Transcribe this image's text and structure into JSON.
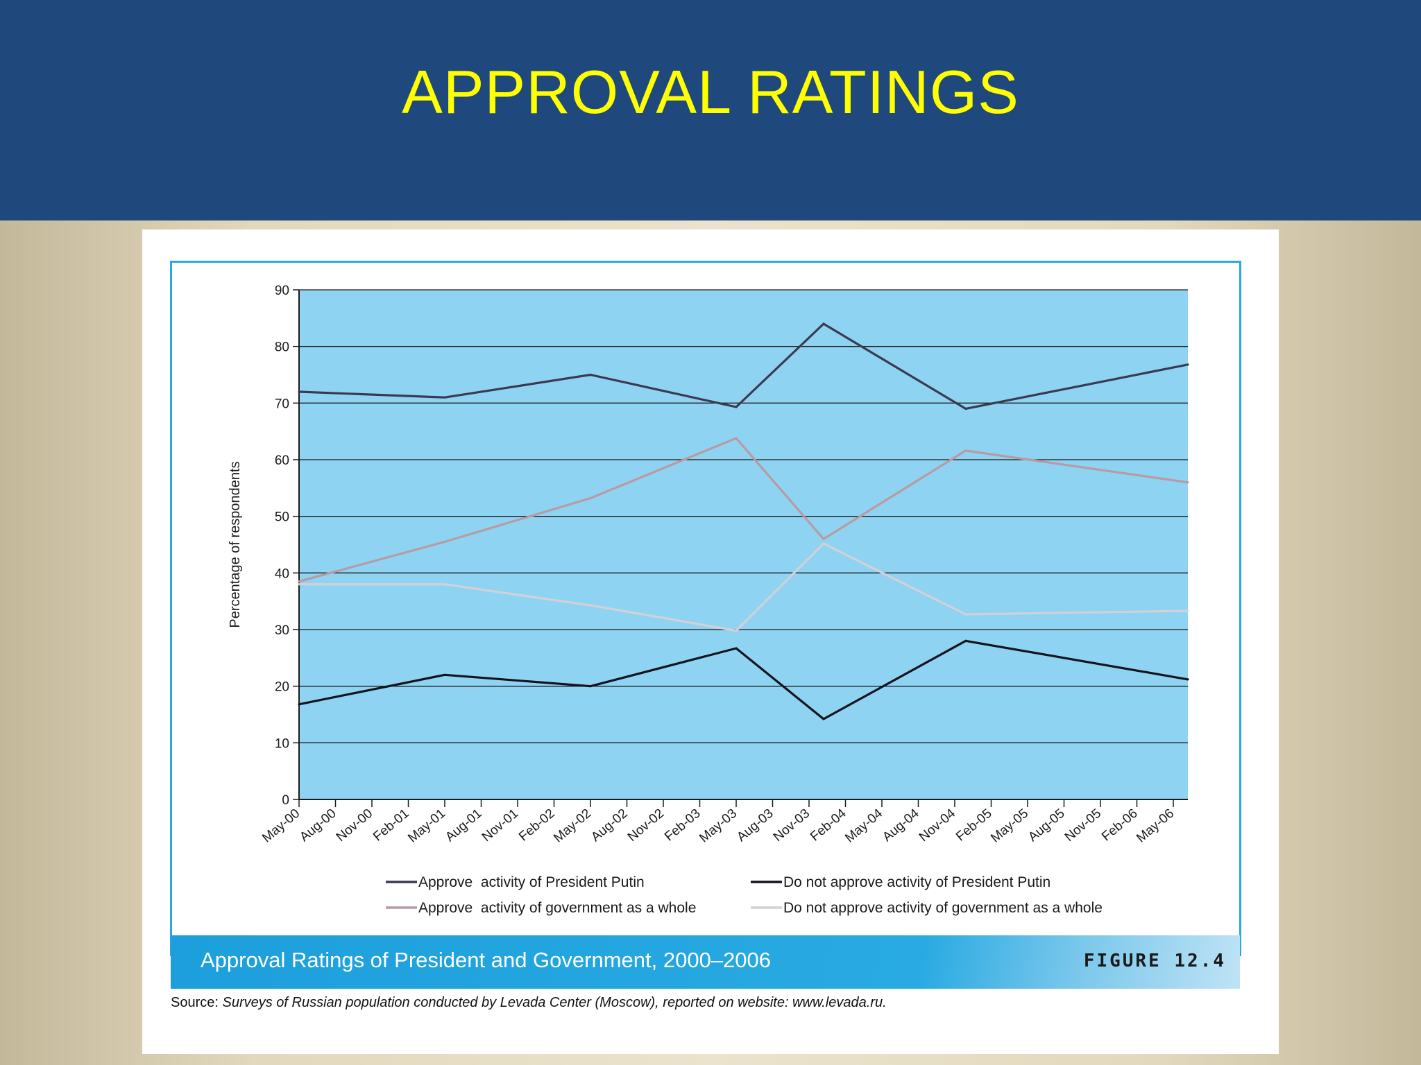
{
  "slide": {
    "title": "APPROVAL RATINGS"
  },
  "figure": {
    "caption": "Approval Ratings of President and Government, 2000–2006",
    "label": "FIGURE 12.4",
    "source_prefix": "Source:",
    "source_text": " Surveys of Russian population conducted by Levada Center (Moscow), reported on website: www.levada.ru."
  },
  "colors": {
    "header_bg": "#1f497d",
    "title": "#ffff00",
    "plot_bg": "#8fd3f2",
    "accent": "#29a9e1"
  },
  "chart_data": {
    "type": "line",
    "ylabel": "Percentage of respondents",
    "ylim": [
      0,
      90
    ],
    "yticks": [
      0,
      10,
      20,
      30,
      40,
      50,
      60,
      70,
      80,
      90
    ],
    "grid": true,
    "legend_placement": "bottom",
    "categories": [
      "May-00",
      "Aug-00",
      "Nov-00",
      "Feb-01",
      "May-01",
      "Aug-01",
      "Nov-01",
      "Feb-02",
      "May-02",
      "Aug-02",
      "Nov-02",
      "Feb-03",
      "May-03",
      "Aug-03",
      "Nov-03",
      "Feb-04",
      "May-04",
      "Aug-04",
      "Nov-04",
      "Feb-05",
      "May-05",
      "Aug-05",
      "Nov-05",
      "Feb-06",
      "May-06"
    ],
    "series": [
      {
        "name": "Approve  activity of President Putin",
        "color": "#3a3a50",
        "points": [
          [
            0,
            72
          ],
          [
            4,
            71
          ],
          [
            8,
            75
          ],
          [
            12,
            69.3
          ],
          [
            14.4,
            84
          ],
          [
            18.3,
            69
          ],
          [
            24.4,
            76.8
          ]
        ]
      },
      {
        "name": "Do not approve activity of President Putin",
        "color": "#14141e",
        "points": [
          [
            0,
            16.8
          ],
          [
            4,
            22
          ],
          [
            8,
            20
          ],
          [
            12,
            26.7
          ],
          [
            14.4,
            14.2
          ],
          [
            18.3,
            28
          ],
          [
            24.4,
            21.2
          ]
        ]
      },
      {
        "name": "Approve  activity of government as a whole",
        "color": "#b99aa3",
        "points": [
          [
            0,
            38.5
          ],
          [
            4,
            45.5
          ],
          [
            8,
            53.2
          ],
          [
            12,
            63.8
          ],
          [
            14.4,
            46
          ],
          [
            18.3,
            61.6
          ],
          [
            24.4,
            56
          ]
        ]
      },
      {
        "name": "Do not approve activity of government as a whole",
        "color": "#d4d0d6",
        "points": [
          [
            0,
            38
          ],
          [
            4,
            38
          ],
          [
            8,
            34.3
          ],
          [
            12,
            29.8
          ],
          [
            14.4,
            45.2
          ],
          [
            18.3,
            32.7
          ],
          [
            24.4,
            33.3
          ]
        ]
      }
    ]
  }
}
